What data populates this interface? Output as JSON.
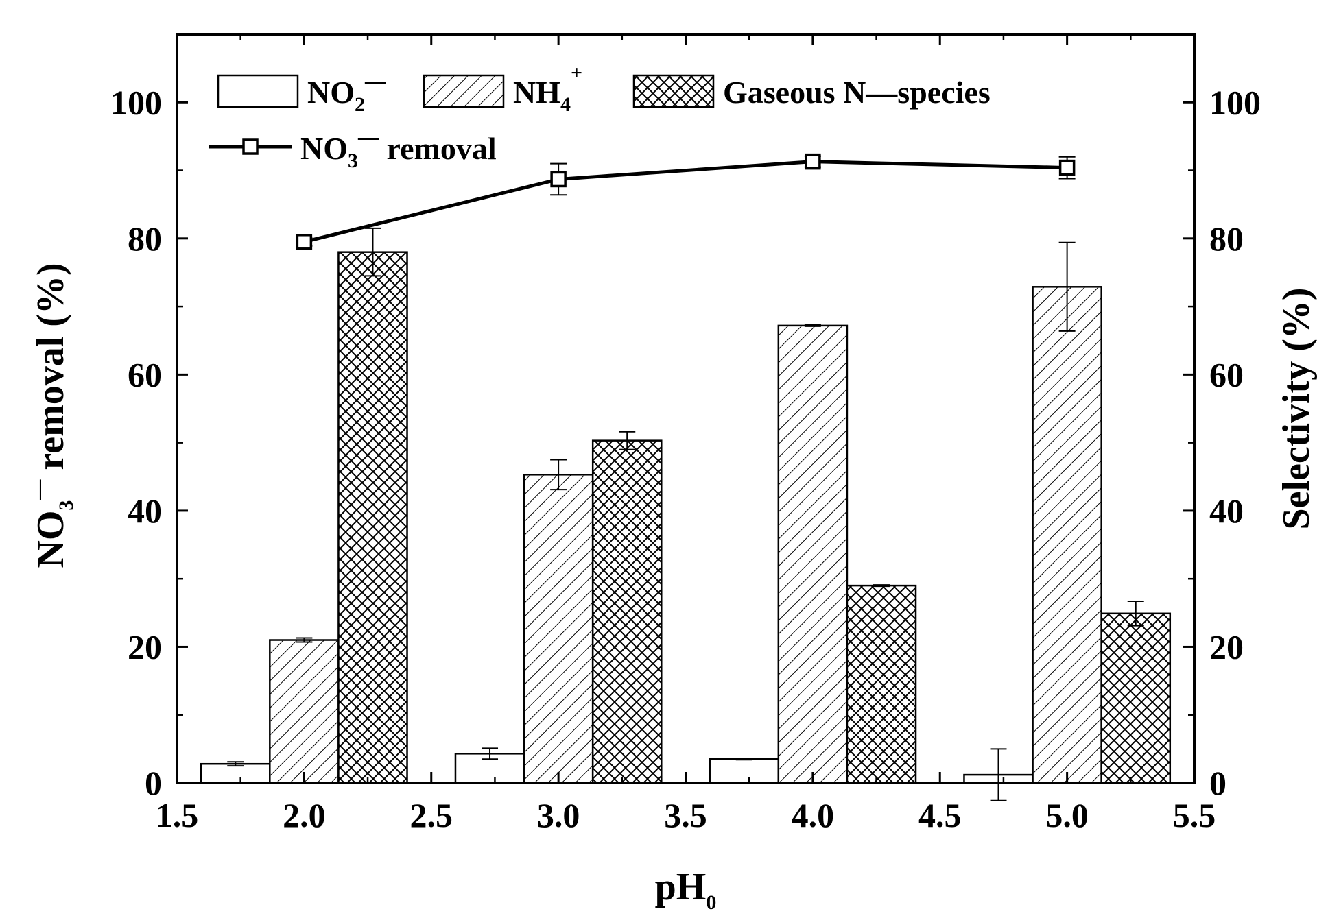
{
  "chart_data": {
    "type": "bar",
    "x_axis": {
      "label": "pH",
      "label_subscript": "0",
      "range": [
        1.5,
        5.5
      ],
      "ticks": [
        "1.5",
        "2.0",
        "2.5",
        "3.0",
        "3.5",
        "4.0",
        "4.5",
        "5.0",
        "5.5"
      ]
    },
    "y_axis_left": {
      "label_main": "NO",
      "label_subscript": "3",
      "label_superscript": "—",
      "label_rest": " removal (%)",
      "range": [
        0,
        110
      ],
      "ticks": [
        "0",
        "20",
        "40",
        "60",
        "80",
        "100"
      ]
    },
    "y_axis_right": {
      "label": "Selectivity (%)",
      "range": [
        0,
        110
      ],
      "ticks": [
        "0",
        "20",
        "40",
        "60",
        "80",
        "100"
      ]
    },
    "categories": [
      2.0,
      3.0,
      4.0,
      5.0
    ],
    "bar_series": [
      {
        "name": "NO2−",
        "label_main": "NO",
        "label_sub": "2",
        "label_sup": "—",
        "pattern": "none",
        "offset": -0.27,
        "values": [
          2.8,
          4.3,
          3.5,
          1.2
        ],
        "errors": [
          0.3,
          0.8,
          0.1,
          3.8
        ]
      },
      {
        "name": "NH4+",
        "label_main": "NH",
        "label_sub": "4",
        "label_sup": "+",
        "pattern": "diagonal",
        "offset": 0.0,
        "values": [
          21.0,
          45.3,
          67.2,
          72.9
        ],
        "errors": [
          0.3,
          2.2,
          0.1,
          6.5
        ]
      },
      {
        "name": "Gaseous N—species",
        "label_main": "Gaseous N—species",
        "label_sub": "",
        "label_sup": "",
        "pattern": "crosshatch",
        "offset": 0.27,
        "values": [
          78.0,
          50.3,
          29.0,
          24.9
        ],
        "errors": [
          3.5,
          1.3,
          0.1,
          1.8
        ]
      }
    ],
    "line_series": {
      "name": "NO3− removal",
      "label_main": "NO",
      "label_sub": "3",
      "label_sup": "—",
      "label_rest": " removal",
      "x": [
        2.0,
        3.0,
        4.0,
        5.0
      ],
      "values": [
        79.5,
        88.7,
        91.3,
        90.4
      ],
      "errors": [
        0.6,
        2.3,
        0.8,
        1.6
      ],
      "marker": "open-square"
    }
  }
}
